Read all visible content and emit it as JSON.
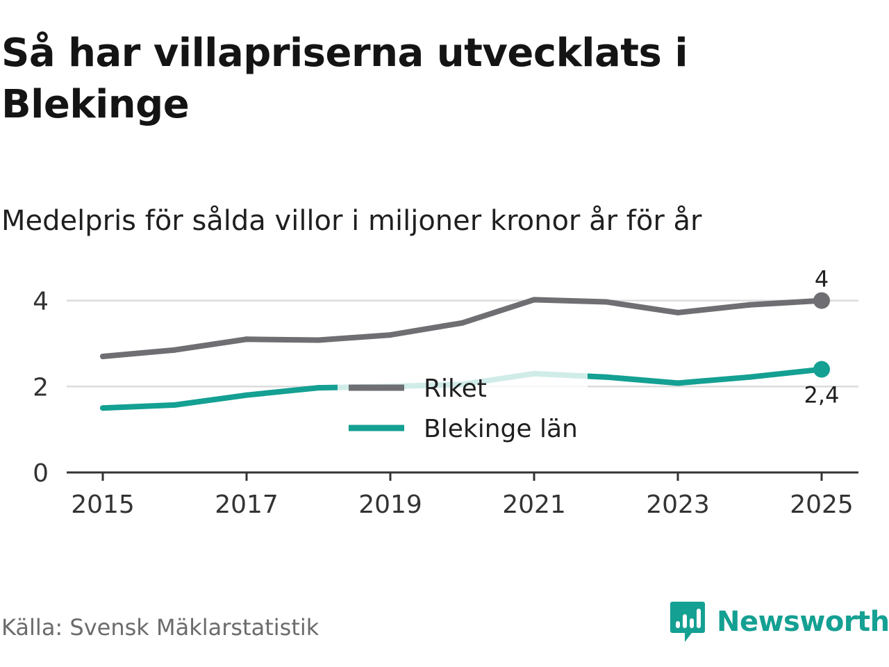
{
  "title": "Så har villapriserna utvecklats i Blekinge",
  "subtitle": "Medelpris för sålda villor i miljoner kronor år för år",
  "source": "Källa: Svensk Mäklarstatistik",
  "brand": "Newsworthy",
  "colors": {
    "riket": "#6e6e73",
    "blekinge": "#14a092",
    "grid": "#dcdcdc",
    "axis": "#333333"
  },
  "chart_data": {
    "type": "line",
    "x": [
      2015,
      2016,
      2017,
      2018,
      2019,
      2020,
      2021,
      2022,
      2023,
      2024,
      2025
    ],
    "x_ticks": [
      "2015",
      "2017",
      "2019",
      "2021",
      "2023",
      "2025"
    ],
    "y_ticks": [
      "0",
      "2",
      "4"
    ],
    "ylim": [
      0,
      4.5
    ],
    "series": [
      {
        "name": "Riket",
        "values": [
          2.7,
          2.85,
          3.1,
          3.08,
          3.2,
          3.48,
          4.02,
          3.97,
          3.72,
          3.9,
          4.0
        ],
        "end_label": "4"
      },
      {
        "name": "Blekinge län",
        "values": [
          1.5,
          1.57,
          1.8,
          1.97,
          2.0,
          2.05,
          2.3,
          2.22,
          2.08,
          2.22,
          2.4
        ],
        "end_label": "2,4"
      }
    ]
  }
}
